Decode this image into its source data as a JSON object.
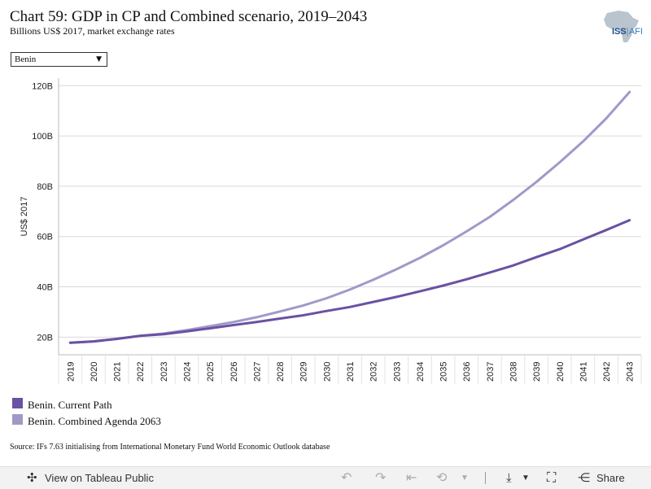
{
  "header": {
    "title": "Chart 59: GDP in CP and Combined scenario, 2019–2043",
    "subtitle": "Billions US$ 2017, market exchange rates"
  },
  "logo": {
    "text_a": "ISS",
    "text_b": "AFI"
  },
  "country_select": {
    "selected": "Benin"
  },
  "chart_data": {
    "type": "line",
    "title": "Chart 59: GDP in CP and Combined scenario, 2019–2043",
    "subtitle": "Billions US$ 2017, market exchange rates",
    "xlabel": "",
    "ylabel": "US$ 2017",
    "ylim": [
      13,
      123
    ],
    "y_ticks": [
      20,
      40,
      60,
      80,
      100,
      120
    ],
    "y_tick_labels": [
      "20B",
      "40B",
      "60B",
      "80B",
      "100B",
      "120B"
    ],
    "grid": true,
    "legend_placement": "bottom-left",
    "categories": [
      "2019",
      "2020",
      "2021",
      "2022",
      "2023",
      "2024",
      "2025",
      "2026",
      "2027",
      "2028",
      "2029",
      "2030",
      "2031",
      "2032",
      "2033",
      "2034",
      "2035",
      "2036",
      "2037",
      "2038",
      "2039",
      "2040",
      "2041",
      "2042",
      "2043"
    ],
    "series": [
      {
        "name": "Benin. Current Path",
        "color": "#6a51a3",
        "values": [
          17.8,
          18.3,
          19.3,
          20.5,
          21.2,
          22.3,
          23.5,
          24.8,
          26.0,
          27.4,
          28.7,
          30.4,
          32.0,
          34.0,
          36.0,
          38.2,
          40.5,
          43.0,
          45.7,
          48.5,
          51.8,
          55.0,
          58.8,
          62.6,
          66.5
        ]
      },
      {
        "name": "Benin. Combined Agenda 2063",
        "color": "#9e9ac8",
        "values": [
          17.8,
          18.3,
          19.3,
          20.5,
          21.4,
          22.8,
          24.4,
          26.0,
          27.9,
          30.2,
          32.6,
          35.5,
          38.9,
          42.8,
          47.0,
          51.5,
          56.5,
          62.0,
          67.8,
          74.5,
          81.7,
          89.5,
          97.8,
          107.0,
          117.5
        ]
      }
    ]
  },
  "footer": {
    "source": "Source: IFs 7.63 initialising from International Monetary Fund World Economic Outlook database"
  },
  "toolbar": {
    "view_label": "View on Tableau Public",
    "share_label": "Share"
  }
}
